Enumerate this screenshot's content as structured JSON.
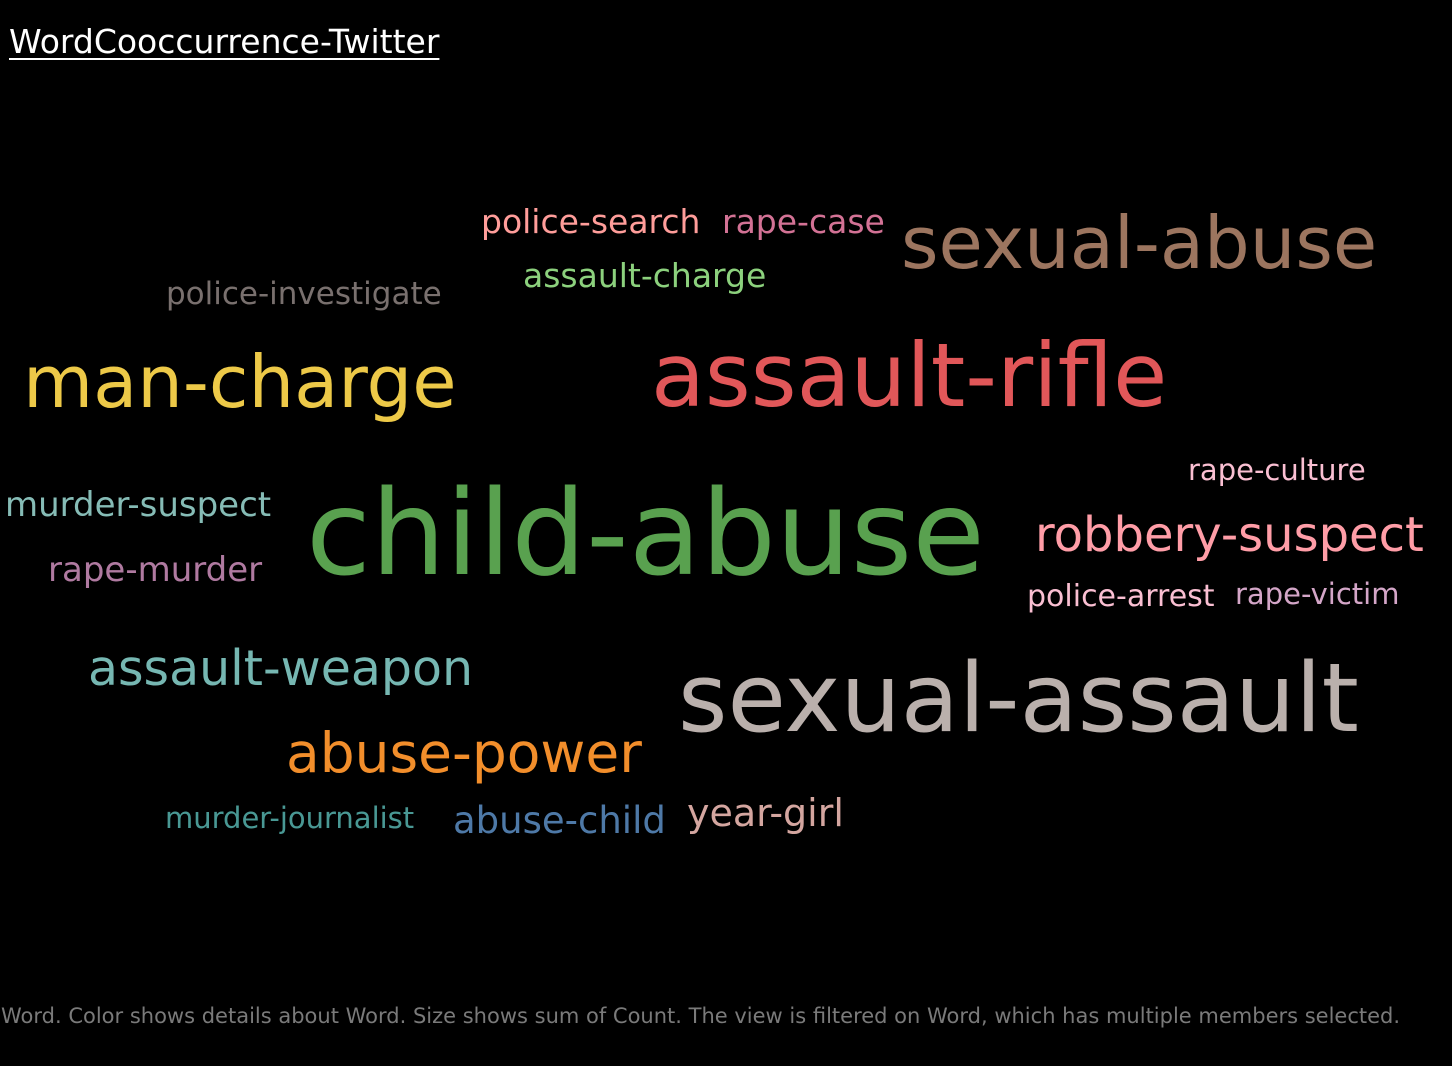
{
  "title": "WordCooccurrence-Twitter",
  "caption": "Word.  Color shows details about Word.  Size shows sum of Count. The view is filtered on Word, which has multiple members selected.",
  "chart_data": {
    "type": "word-cloud",
    "size_encoding": "sum of Count",
    "color_encoding": "Word",
    "words": [
      {
        "text": "child-abuse",
        "weight": 100,
        "color": "#59a14f"
      },
      {
        "text": "sexual-assault",
        "weight": 80,
        "color": "#bab0ac"
      },
      {
        "text": "assault-rifle",
        "weight": 74,
        "color": "#e15759"
      },
      {
        "text": "sexual-abuse",
        "weight": 60,
        "color": "#9c755f"
      },
      {
        "text": "man-charge",
        "weight": 58,
        "color": "#edc948"
      },
      {
        "text": "robbery-suspect",
        "weight": 43,
        "color": "#ff9da7"
      },
      {
        "text": "abuse-power",
        "weight": 43,
        "color": "#f28e2b"
      },
      {
        "text": "assault-weapon",
        "weight": 40,
        "color": "#76b7b2"
      },
      {
        "text": "year-girl",
        "weight": 33,
        "color": "#d4a6a0"
      },
      {
        "text": "abuse-child",
        "weight": 32,
        "color": "#4e79a7"
      },
      {
        "text": "police-search",
        "weight": 29,
        "color": "#ff9d9a"
      },
      {
        "text": "rape-case",
        "weight": 29,
        "color": "#d37295"
      },
      {
        "text": "murder-suspect",
        "weight": 29,
        "color": "#86bcb6"
      },
      {
        "text": "rape-murder",
        "weight": 29,
        "color": "#b07aa1"
      },
      {
        "text": "assault-charge",
        "weight": 28,
        "color": "#8cd17d"
      },
      {
        "text": "police-investigate",
        "weight": 27,
        "color": "#79706e"
      },
      {
        "text": "police-arrest",
        "weight": 27,
        "color": "#fabfd2"
      },
      {
        "text": "rape-culture",
        "weight": 26,
        "color": "#fabfd2"
      },
      {
        "text": "rape-victim",
        "weight": 26,
        "color": "#d4a6c8"
      },
      {
        "text": "murder-journalist",
        "weight": 26,
        "color": "#499894"
      }
    ]
  }
}
